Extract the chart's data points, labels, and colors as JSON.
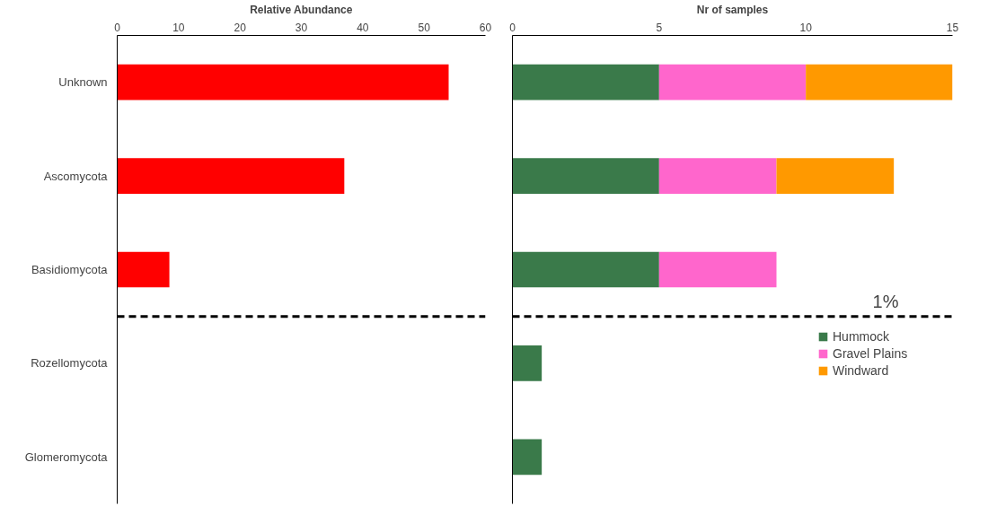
{
  "chart_data": [
    {
      "type": "bar",
      "orientation": "horizontal",
      "xlabel": "Relative Abundance",
      "categories": [
        "Unknown",
        "Ascomycota",
        "Basidiomycota",
        "Rozellomycota",
        "Glomeromycota"
      ],
      "values": [
        54,
        37,
        8.5,
        null,
        null
      ],
      "color": "#ff0000",
      "xlim": [
        0,
        60
      ],
      "xticks": [
        0,
        10,
        20,
        30,
        40,
        50,
        60
      ],
      "grid": false,
      "legend": false
    },
    {
      "type": "bar",
      "orientation": "horizontal",
      "stacked": true,
      "xlabel": "Nr of samples",
      "categories": [
        null,
        null,
        null,
        null,
        null
      ],
      "series": [
        {
          "name": "Hummock",
          "color": "#3a7a4a",
          "values": [
            5,
            5,
            5,
            1,
            1
          ]
        },
        {
          "name": "Gravel Plains",
          "color": "#ff66cc",
          "values": [
            5,
            4,
            4,
            0,
            0
          ]
        },
        {
          "name": "Windward",
          "color": "#ff9900",
          "values": [
            5,
            4,
            0,
            0,
            0
          ]
        }
      ],
      "xlim": [
        0,
        15
      ],
      "xticks": [
        0,
        5,
        10,
        15
      ],
      "grid": false,
      "legend": "bottom right",
      "tick_labels": "x",
      "annotations": [
        "1%"
      ]
    }
  ]
}
